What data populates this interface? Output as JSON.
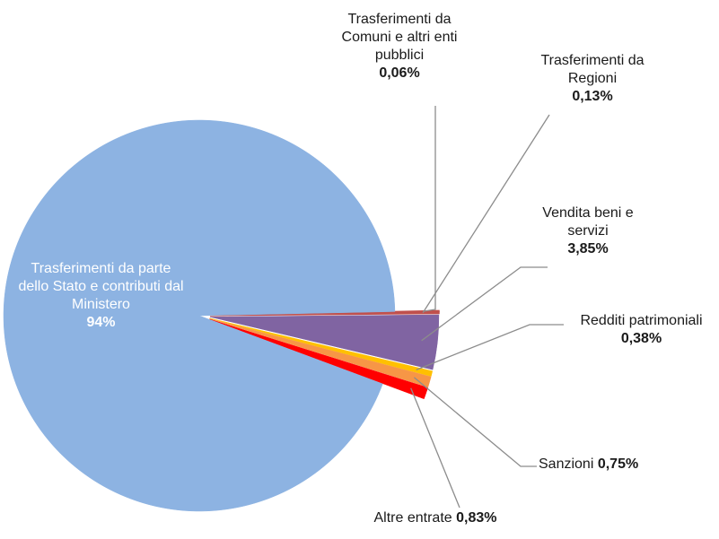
{
  "chart_data": {
    "type": "pie",
    "categories": [
      "Trasferimenti da Comuni e altri enti pubblici",
      "Trasferimenti da Regioni",
      "Vendita beni e servizi",
      "Redditi patrimoniali",
      "Sanzioni",
      "Altre entrate",
      "Trasferimenti da parte dello Stato e contributi dal Ministero"
    ],
    "values": [
      0.06,
      0.13,
      3.85,
      0.38,
      0.75,
      0.83,
      94
    ],
    "value_labels": [
      "0,06%",
      "0,13%",
      "3,85%",
      "0,38%",
      "0,75%",
      "0,83%",
      "94%"
    ],
    "colors": [
      "#c0504d",
      "#c0504d",
      "#8064a2",
      "#ffc000",
      "#f79646",
      "#ff0000",
      "#8db3e2"
    ]
  }
}
